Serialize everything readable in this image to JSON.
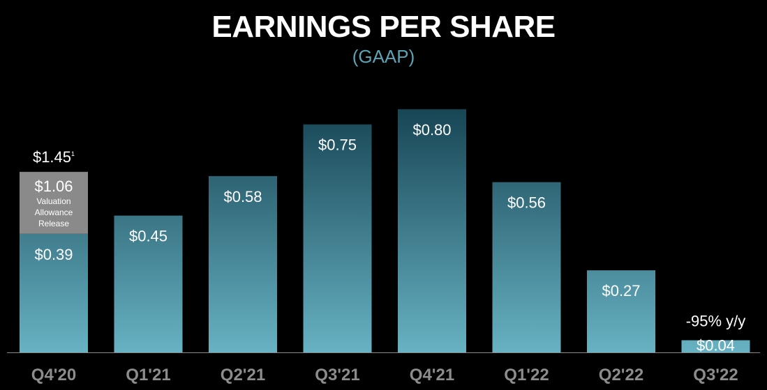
{
  "header": {
    "title": "EARNINGS PER SHARE",
    "subtitle": "(GAAP)"
  },
  "chart_data": {
    "type": "bar",
    "title": "EARNINGS PER SHARE",
    "subtitle": "(GAAP)",
    "categories": [
      "Q4'20",
      "Q1'21",
      "Q2'21",
      "Q3'21",
      "Q4'21",
      "Q1'22",
      "Q2'22",
      "Q3'22"
    ],
    "values": [
      0.39,
      0.45,
      0.58,
      0.75,
      0.8,
      0.56,
      0.27,
      0.04
    ],
    "value_labels": [
      "$0.39",
      "$0.45",
      "$0.58",
      "$0.75",
      "$0.80",
      "$0.56",
      "$0.27",
      "$0.04"
    ],
    "stacked_segment": {
      "category": "Q4'20",
      "value": 1.06,
      "label": "$1.06",
      "description": [
        "Valuation",
        "Allowance",
        "Release"
      ],
      "total_label": "$1.45",
      "total_footnote": "1",
      "color": "#8a8a8a"
    },
    "annotation": {
      "category": "Q3'22",
      "text": "-95% y/y"
    },
    "ylim": [
      0,
      1.6
    ],
    "grid": false,
    "legend": "none",
    "colors": {
      "bar_top": "#0f3a49",
      "bar_bottom": "#67b2c3",
      "background": "#000000",
      "baseline": "#8a8a8a",
      "subtitle": "#5ba3b5",
      "tick_text": "#8c8c8c"
    }
  }
}
